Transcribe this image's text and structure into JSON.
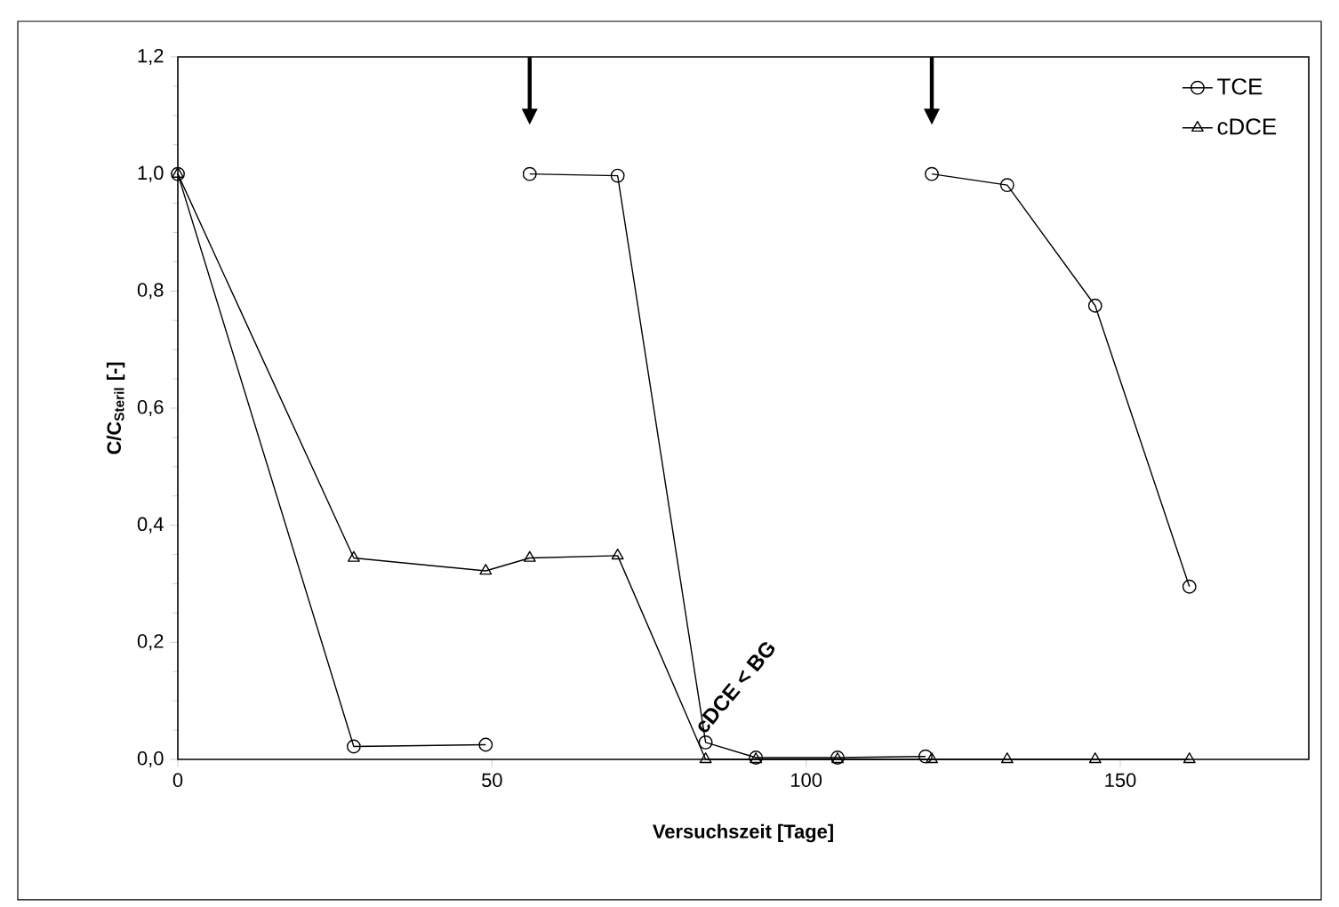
{
  "chart_data": {
    "type": "line",
    "xlabel": "Versuchszeit [Tage]",
    "ylabel": "C/C$_{Steril}$ [-]",
    "xlim": [
      0,
      180
    ],
    "xticks": [
      0,
      50,
      100,
      150
    ],
    "ylim": [
      0,
      1.2
    ],
    "yticks": [
      {
        "value": 0,
        "label": "0,0"
      },
      {
        "value": 0.2,
        "label": "0,2"
      },
      {
        "value": 0.4,
        "label": "0,4"
      },
      {
        "value": 0.6,
        "label": "0,6"
      },
      {
        "value": 0.8,
        "label": "0,8"
      },
      {
        "value": 1.0,
        "label": "1,0"
      },
      {
        "value": 1.2,
        "label": "1,2"
      }
    ],
    "series": [
      {
        "name": "TCE",
        "color": "#000000",
        "marker": "circle",
        "x": [
          0,
          28,
          49,
          null,
          56,
          70,
          84,
          92,
          105,
          119,
          null,
          120,
          132,
          146,
          161
        ],
        "values": [
          1.0,
          0.022,
          0.025,
          null,
          1.0,
          0.997,
          0.029,
          0.003,
          0.003,
          0.005,
          null,
          1.0,
          0.981,
          0.775,
          0.295
        ]
      },
      {
        "name": "cDCE",
        "color": "#000000",
        "marker": "triangle",
        "x": [
          0,
          28,
          49,
          56,
          70,
          84,
          92,
          105,
          120,
          132,
          146,
          161
        ],
        "values": [
          1.0,
          0.344,
          0.322,
          0.344,
          0.348,
          0,
          0,
          0,
          0,
          0,
          0,
          0
        ]
      }
    ],
    "annotations": [
      {
        "text": "cDCE < BG",
        "x": 84,
        "y": 0
      }
    ],
    "legend": "top right",
    "grid": false,
    "line_style": "solid"
  }
}
